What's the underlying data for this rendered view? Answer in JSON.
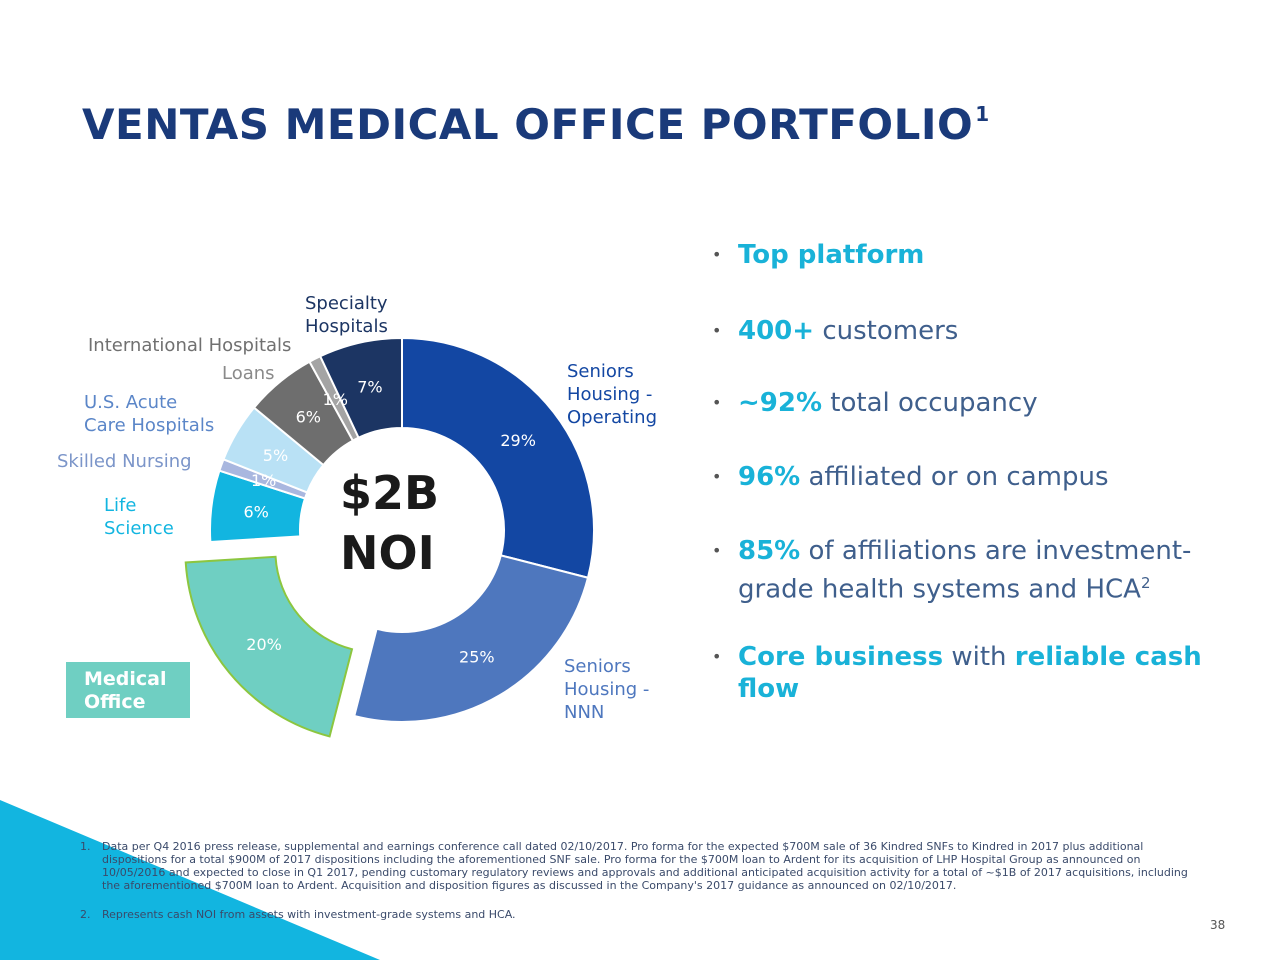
{
  "slide": {
    "title": "VENTAS MEDICAL OFFICE PORTFOLIO",
    "title_sup": "1",
    "page_number": "38"
  },
  "chart_data": {
    "type": "pie",
    "center_label_1": "$2B",
    "center_label_2": "NOI",
    "slices": [
      {
        "name": "Seniors Housing - Operating",
        "label_lines": [
          "Seniors",
          "Housing -",
          "Operating"
        ],
        "value": 29,
        "value_label": "29%",
        "color": "#1347a3"
      },
      {
        "name": "Seniors Housing - NNN",
        "label_lines": [
          "Seniors",
          "Housing -",
          "NNN"
        ],
        "value": 25,
        "value_label": "25%",
        "color": "#4e77be"
      },
      {
        "name": "Medical Office",
        "label_lines": [
          "Medical",
          "Office"
        ],
        "value": 20,
        "value_label": "20%",
        "color": "#6fcfc2",
        "exploded": true
      },
      {
        "name": "Life Science",
        "label_lines": [
          "Life",
          "Science"
        ],
        "value": 6,
        "value_label": "6%",
        "color": "#12b5e0"
      },
      {
        "name": "Skilled Nursing",
        "label_lines": [
          "Skilled Nursing"
        ],
        "value": 1,
        "value_label": "1%",
        "color": "#a9b7df"
      },
      {
        "name": "U.S. Acute Care Hospitals",
        "label_lines": [
          "U.S. Acute",
          "Care Hospitals"
        ],
        "value": 5,
        "value_label": "5%",
        "color": "#b9e1f5"
      },
      {
        "name": "Loans",
        "label_lines": [
          "Loans"
        ],
        "value": 6,
        "value_label": "6%",
        "color": "#6e6e6e"
      },
      {
        "name": "International Hospitals",
        "label_lines": [
          "International Hospitals"
        ],
        "value": 1,
        "value_label": "1%",
        "color": "#a4a4a4"
      },
      {
        "name": "Specialty Hospitals",
        "label_lines": [
          "Specialty",
          "Hospitals"
        ],
        "value": 7,
        "value_label": "7%",
        "color": "#1c3563"
      }
    ]
  },
  "bullets": [
    {
      "parts": [
        {
          "text": "Top platform",
          "style": "hl"
        }
      ]
    },
    {
      "parts": [
        {
          "text": "400+",
          "style": "hl"
        },
        {
          "text": " customers",
          "style": "nm"
        }
      ]
    },
    {
      "parts": [
        {
          "text": "~92%",
          "style": "hl"
        },
        {
          "text": " total occupancy",
          "style": "nm"
        }
      ]
    },
    {
      "parts": [
        {
          "text": "96%",
          "style": "hl"
        },
        {
          "text": " affiliated or on campus",
          "style": "nm"
        }
      ]
    },
    {
      "parts": [
        {
          "text": "85%",
          "style": "hl"
        },
        {
          "text": " of affiliations are investment-",
          "style": "nm"
        }
      ],
      "line2": "grade health systems and HCA",
      "line2_sup": "2"
    },
    {
      "parts": [
        {
          "text": "Core business",
          "style": "hl"
        },
        {
          "text": " with ",
          "style": "nm"
        },
        {
          "text": "reliable cash",
          "style": "hl"
        }
      ],
      "line2": "flow",
      "line2_style": "hl"
    }
  ],
  "footnotes": [
    {
      "num": "1.",
      "text": "Data per Q4 2016 press release, supplemental and earnings conference call dated 02/10/2017. Pro forma for the expected $700M sale of 36 Kindred SNFs to Kindred in 2017 plus additional dispositions for a total $900M of 2017 dispositions including the aforementioned SNF sale. Pro forma for the $700M loan to Ardent for its acquisition of LHP Hospital Group as announced on 10/05/2016 and expected to close in Q1 2017, pending customary regulatory reviews and approvals and additional anticipated acquisition activity for a total of ~$1B of 2017 acquisitions, including the aforementioned $700M loan to Ardent. Acquisition and disposition figures as discussed in the Company's 2017 guidance as announced on 02/10/2017."
    },
    {
      "num": "2.",
      "text": "Represents cash NOI from assets with investment-grade systems and HCA."
    }
  ]
}
